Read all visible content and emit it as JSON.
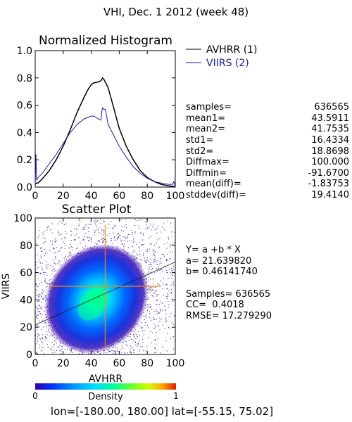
{
  "page": {
    "title": "VHI,  Dec. 1 2012 (week 48)",
    "footer": "lon=[-180.00, 180.00] lat=[-55.15, 75.02]"
  },
  "histogram": {
    "title": "Normalized Histogram",
    "legend": [
      {
        "label": "AVHRR (1)",
        "color": "#000000"
      },
      {
        "label": "VIIRS (2)",
        "color": "#1a1aa8"
      }
    ],
    "stats": [
      {
        "label": "samples=",
        "value": "636565"
      },
      {
        "label": "mean1=",
        "value": "43.5911"
      },
      {
        "label": "mean2=",
        "value": "41.7535"
      },
      {
        "label": "std1=",
        "value": "16.4334"
      },
      {
        "label": "std2=",
        "value": "18.8698"
      },
      {
        "label": "Diffmax=",
        "value": "100.000"
      },
      {
        "label": "Diffmin=",
        "value": "-91.6700"
      },
      {
        "label": "mean(diff)=",
        "value": "-1.83753"
      },
      {
        "label": "stddev(diff)=",
        "value": "19.4140"
      }
    ]
  },
  "scatter": {
    "title": "Scatter Plot",
    "stats": [
      "Y= a +b * X",
      "a= 21.639820",
      "b= 0.46141740",
      "",
      "Samples= 636565",
      "CC=  0.4018",
      "RMSE= 17.279290"
    ]
  },
  "colorbar": {
    "label": "Density",
    "min_label": "0",
    "max_label": "1"
  },
  "chart_data": [
    {
      "type": "line",
      "title": "Normalized Histogram",
      "xlim": [
        0,
        100
      ],
      "ylim": [
        0,
        1
      ],
      "xticks": [
        0,
        20,
        40,
        60,
        80,
        100
      ],
      "yticks": [
        0.0,
        0.2,
        0.4,
        0.6,
        0.8,
        1.0
      ],
      "ytick_labels": [
        "0.0",
        "0.2",
        "0.4",
        "0.6",
        "0.8",
        "1.0"
      ],
      "series": [
        {
          "name": "AVHRR (1)",
          "color": "#000000",
          "x": [
            0,
            1,
            2,
            5,
            10,
            15,
            20,
            25,
            30,
            35,
            38,
            40,
            42,
            45,
            47,
            48,
            49,
            50,
            52,
            55,
            60,
            65,
            70,
            75,
            80,
            85,
            90,
            95,
            99,
            100
          ],
          "y": [
            0.02,
            0.03,
            0.03,
            0.06,
            0.12,
            0.2,
            0.3,
            0.42,
            0.55,
            0.66,
            0.72,
            0.75,
            0.765,
            0.77,
            0.78,
            0.8,
            0.79,
            0.77,
            0.73,
            0.62,
            0.43,
            0.3,
            0.2,
            0.12,
            0.07,
            0.04,
            0.02,
            0.01,
            0.005,
            0.0
          ]
        },
        {
          "name": "VIIRS (2)",
          "color": "#1a1aa8",
          "x": [
            0,
            0.5,
            1,
            2,
            5,
            10,
            15,
            20,
            25,
            30,
            35,
            40,
            42,
            45,
            47,
            47.5,
            48,
            49,
            50,
            51,
            52,
            55,
            60,
            65,
            70,
            75,
            80,
            85,
            90,
            95,
            98,
            99,
            100
          ],
          "y": [
            0.0,
            0.24,
            0.05,
            0.07,
            0.1,
            0.17,
            0.24,
            0.32,
            0.4,
            0.46,
            0.5,
            0.52,
            0.52,
            0.5,
            0.49,
            0.55,
            0.58,
            0.57,
            0.57,
            0.52,
            0.46,
            0.4,
            0.3,
            0.22,
            0.15,
            0.1,
            0.065,
            0.04,
            0.03,
            0.02,
            0.02,
            0.04,
            0.0
          ]
        }
      ]
    },
    {
      "type": "scatter",
      "title": "Scatter Plot",
      "xlabel": "AVHRR",
      "ylabel": "VIIRS",
      "xlim": [
        0,
        100
      ],
      "ylim": [
        0,
        100
      ],
      "xticks": [
        0,
        20,
        40,
        60,
        80,
        100
      ],
      "yticks": [
        0,
        20,
        40,
        60,
        80,
        100
      ],
      "density_center": [
        42,
        38
      ],
      "fit_line": {
        "a": 21.63982,
        "b": 0.4614174
      },
      "mean_crosshair": [
        50,
        50
      ],
      "colorbar": {
        "min": 0,
        "max": 1,
        "colors": [
          "#3300aa",
          "#0033ff",
          "#0099ff",
          "#00ddff",
          "#00ff99",
          "#66ff33",
          "#ccff00",
          "#ffcc00",
          "#ff6600",
          "#dd2200"
        ]
      }
    }
  ]
}
